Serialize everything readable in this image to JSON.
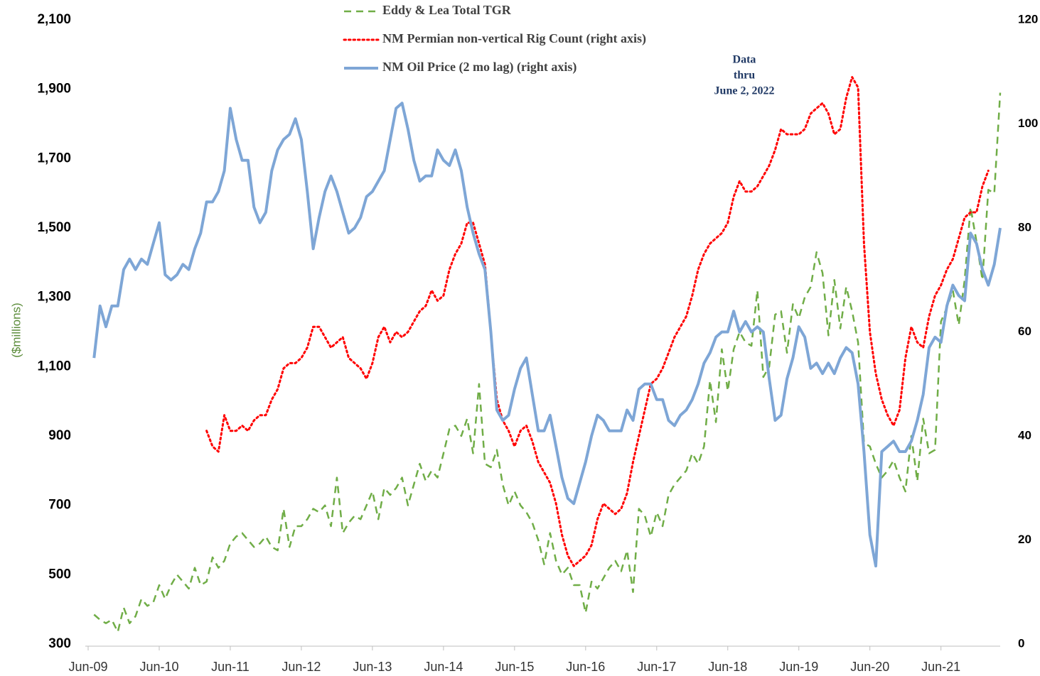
{
  "chart_data": {
    "type": "line",
    "ylabel": "($millions)",
    "annotation": [
      "Data",
      "thru",
      "June 2, 2022"
    ],
    "ylim": [
      300,
      2100
    ],
    "yticks": [
      300,
      500,
      700,
      900,
      {
        "value": 1100,
        "label": "1,100"
      },
      {
        "value": 1300,
        "label": "1,300"
      },
      {
        "value": 1500,
        "label": "1,500"
      },
      {
        "value": 1700,
        "label": "1,700"
      },
      {
        "value": 1900,
        "label": "1,900"
      },
      {
        "value": 2100,
        "label": "2,100"
      }
    ],
    "y2lim": [
      0,
      120
    ],
    "y2ticks": [
      0,
      20,
      40,
      60,
      80,
      100,
      120
    ],
    "xlim": [
      "2009-06",
      "2022-04"
    ],
    "xticks": [
      {
        "value": "2009-06",
        "label": "Jun-09"
      },
      {
        "value": "2010-06",
        "label": "Jun-10"
      },
      {
        "value": "2011-06",
        "label": "Jun-11"
      },
      {
        "value": "2012-06",
        "label": "Jun-12"
      },
      {
        "value": "2013-06",
        "label": "Jun-13"
      },
      {
        "value": "2014-06",
        "label": "Jun-14"
      },
      {
        "value": "2015-06",
        "label": "Jun-15"
      },
      {
        "value": "2016-06",
        "label": "Jun-16"
      },
      {
        "value": "2017-06",
        "label": "Jun-17"
      },
      {
        "value": "2018-06",
        "label": "Jun-18"
      },
      {
        "value": "2019-06",
        "label": "Jun-19"
      },
      {
        "value": "2020-06",
        "label": "Jun-20"
      },
      {
        "value": "2021-06",
        "label": "Jun-21"
      }
    ],
    "x": [
      "2009-07",
      "2009-08",
      "2009-09",
      "2009-10",
      "2009-11",
      "2009-12",
      "2010-01",
      "2010-02",
      "2010-03",
      "2010-04",
      "2010-05",
      "2010-06",
      "2010-07",
      "2010-08",
      "2010-09",
      "2010-10",
      "2010-11",
      "2010-12",
      "2011-01",
      "2011-02",
      "2011-03",
      "2011-04",
      "2011-05",
      "2011-06",
      "2011-07",
      "2011-08",
      "2011-09",
      "2011-10",
      "2011-11",
      "2011-12",
      "2012-01",
      "2012-02",
      "2012-03",
      "2012-04",
      "2012-05",
      "2012-06",
      "2012-07",
      "2012-08",
      "2012-09",
      "2012-10",
      "2012-11",
      "2012-12",
      "2013-01",
      "2013-02",
      "2013-03",
      "2013-04",
      "2013-05",
      "2013-06",
      "2013-07",
      "2013-08",
      "2013-09",
      "2013-10",
      "2013-11",
      "2013-12",
      "2014-01",
      "2014-02",
      "2014-03",
      "2014-04",
      "2014-05",
      "2014-06",
      "2014-07",
      "2014-08",
      "2014-09",
      "2014-10",
      "2014-11",
      "2014-12",
      "2015-01",
      "2015-02",
      "2015-03",
      "2015-04",
      "2015-05",
      "2015-06",
      "2015-07",
      "2015-08",
      "2015-09",
      "2015-10",
      "2015-11",
      "2015-12",
      "2016-01",
      "2016-02",
      "2016-03",
      "2016-04",
      "2016-05",
      "2016-06",
      "2016-07",
      "2016-08",
      "2016-09",
      "2016-10",
      "2016-11",
      "2016-12",
      "2017-01",
      "2017-02",
      "2017-03",
      "2017-04",
      "2017-05",
      "2017-06",
      "2017-07",
      "2017-08",
      "2017-09",
      "2017-10",
      "2017-11",
      "2017-12",
      "2018-01",
      "2018-02",
      "2018-03",
      "2018-04",
      "2018-05",
      "2018-06",
      "2018-07",
      "2018-08",
      "2018-09",
      "2018-10",
      "2018-11",
      "2018-12",
      "2019-01",
      "2019-02",
      "2019-03",
      "2019-04",
      "2019-05",
      "2019-06",
      "2019-07",
      "2019-08",
      "2019-09",
      "2019-10",
      "2019-11",
      "2019-12",
      "2020-01",
      "2020-02",
      "2020-03",
      "2020-04",
      "2020-05",
      "2020-06",
      "2020-07",
      "2020-08",
      "2020-09",
      "2020-10",
      "2020-11",
      "2020-12",
      "2021-01",
      "2021-02",
      "2021-03",
      "2021-04",
      "2021-05",
      "2021-06",
      "2021-07",
      "2021-08",
      "2021-09",
      "2021-10",
      "2021-11",
      "2021-12",
      "2022-01",
      "2022-02",
      "2022-03",
      "2022-04"
    ],
    "series": [
      {
        "name": "Eddy & Lea Total TGR",
        "color": "#70ad47",
        "dash": "dashed",
        "axis": "y",
        "values": [
          385,
          370,
          360,
          370,
          335,
          405,
          360,
          380,
          430,
          410,
          420,
          470,
          430,
          470,
          500,
          480,
          460,
          520,
          470,
          480,
          550,
          520,
          540,
          590,
          610,
          620,
          600,
          580,
          590,
          610,
          580,
          570,
          690,
          580,
          640,
          640,
          660,
          690,
          680,
          700,
          640,
          780,
          620,
          650,
          670,
          660,
          700,
          740,
          660,
          750,
          730,
          750,
          780,
          700,
          760,
          820,
          770,
          800,
          780,
          850,
          920,
          930,
          900,
          950,
          850,
          1050,
          820,
          810,
          860,
          760,
          700,
          740,
          700,
          680,
          650,
          600,
          530,
          620,
          540,
          500,
          520,
          470,
          470,
          390,
          480,
          460,
          490,
          520,
          540,
          510,
          570,
          450,
          690,
          670,
          610,
          680,
          640,
          730,
          760,
          780,
          800,
          850,
          820,
          870,
          1060,
          940,
          1150,
          1030,
          1150,
          1200,
          1170,
          1160,
          1320,
          1070,
          1100,
          1250,
          1260,
          1140,
          1280,
          1240,
          1300,
          1330,
          1430,
          1370,
          1190,
          1350,
          1210,
          1330,
          1260,
          1170,
          880,
          870,
          820,
          780,
          800,
          830,
          780,
          740,
          900,
          770,
          950,
          850,
          860,
          1230,
          1270,
          1320,
          1220,
          1350,
          1560,
          1460,
          1350,
          1610,
          1600,
          1890
        ]
      },
      {
        "name": "NM Permian non-vertical Rig Count (right axis)",
        "color": "#ff0000",
        "dash": "dotted",
        "axis": "y2",
        "values": [
          null,
          null,
          null,
          null,
          null,
          null,
          null,
          null,
          null,
          null,
          null,
          null,
          null,
          null,
          null,
          null,
          null,
          null,
          null,
          41,
          38,
          37,
          44,
          41,
          41,
          42,
          41,
          43,
          44,
          44,
          47,
          49,
          53,
          54,
          54,
          55,
          57,
          61,
          61,
          59,
          57,
          58,
          59,
          55,
          54,
          53,
          51,
          54,
          59,
          61,
          58,
          60,
          59,
          60,
          62,
          64,
          65,
          68,
          66,
          67,
          72,
          75,
          77,
          81,
          81,
          77,
          73,
          60,
          47,
          43,
          41,
          38,
          41,
          42,
          39,
          35,
          33,
          31,
          27,
          21,
          17,
          15,
          16,
          17,
          19,
          24,
          27,
          26,
          25,
          26,
          29,
          35,
          40,
          45,
          50,
          51,
          53,
          56,
          59,
          61,
          63,
          67,
          72,
          75,
          77,
          78,
          79,
          81,
          86,
          89,
          87,
          87,
          88,
          90,
          92,
          95,
          99,
          98,
          98,
          98,
          99,
          102,
          103,
          104,
          102,
          98,
          99,
          105,
          109,
          107,
          77,
          60,
          52,
          47,
          44,
          42,
          45,
          55,
          61,
          58,
          57,
          63,
          67,
          69,
          72,
          74,
          78,
          82,
          83,
          83,
          88,
          91,
          null,
          null
        ]
      },
      {
        "name": "NM Oil Price (2 mo lag) (right axis)",
        "color": "#7ea6d6",
        "dash": "solid",
        "axis": "y2",
        "values": [
          55,
          65,
          61,
          65,
          65,
          72,
          74,
          72,
          74,
          73,
          77,
          81,
          71,
          70,
          71,
          73,
          72,
          76,
          79,
          85,
          85,
          87,
          91,
          103,
          97,
          93,
          93,
          84,
          81,
          83,
          91,
          95,
          97,
          98,
          101,
          97,
          87,
          76,
          82,
          87,
          90,
          87,
          83,
          79,
          80,
          82,
          86,
          87,
          89,
          91,
          97,
          103,
          104,
          99,
          93,
          89,
          90,
          90,
          95,
          93,
          92,
          95,
          91,
          84,
          79,
          75,
          72,
          60,
          45,
          43,
          44,
          49,
          53,
          55,
          48,
          41,
          41,
          44,
          38,
          32,
          28,
          27,
          31,
          35,
          40,
          44,
          43,
          41,
          41,
          41,
          45,
          43,
          49,
          50,
          50,
          47,
          47,
          43,
          42,
          44,
          45,
          47,
          50,
          54,
          56,
          59,
          60,
          60,
          64,
          60,
          62,
          60,
          61,
          60,
          51,
          43,
          44,
          51,
          55,
          61,
          59,
          53,
          54,
          52,
          54,
          52,
          55,
          57,
          56,
          50,
          37,
          21,
          15,
          37,
          38,
          39,
          37,
          37,
          39,
          43,
          48,
          57,
          59,
          58,
          65,
          69,
          67,
          66,
          79,
          77,
          72,
          69,
          73,
          80
        ]
      }
    ]
  }
}
